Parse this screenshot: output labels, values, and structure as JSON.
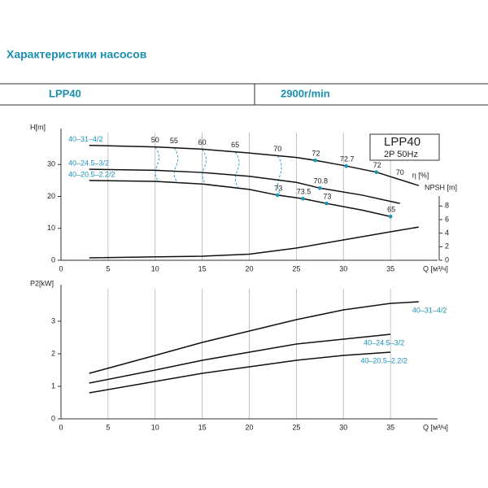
{
  "header": {
    "title": "Характеристики насосов"
  },
  "table": {
    "rows": [
      [
        "LPP40",
        "2900r/min"
      ]
    ]
  },
  "chart_data": [
    {
      "type": "line",
      "title": "LPP40",
      "subtitle": "2P 50Hz",
      "x_label": "Q [м³/ч]",
      "y_label": "H[m]",
      "y2_label": "NPSH [m]",
      "eta_label": "η [%]",
      "xlim": [
        0,
        40
      ],
      "xticks": [
        0,
        5,
        10,
        15,
        20,
        25,
        30,
        35
      ],
      "ylim": [
        0,
        40
      ],
      "yticks": [
        0,
        10,
        20,
        30
      ],
      "y2lim": [
        0,
        9
      ],
      "y2ticks": [
        0,
        2,
        4,
        6,
        8
      ],
      "grid": "x",
      "label_position": "start",
      "color": "#111",
      "series": [
        {
          "name": "40–31–4/2",
          "x": [
            3,
            10,
            15,
            20,
            25,
            27,
            30,
            33.5,
            38
          ],
          "values": [
            36,
            35.5,
            34.8,
            33.6,
            32.2,
            31.3,
            29.7,
            27.6,
            23.4
          ]
        },
        {
          "name": "40–24.5–3/2",
          "x": [
            3,
            10,
            15,
            20,
            25,
            27.5,
            32,
            36
          ],
          "values": [
            28.5,
            28.2,
            27.5,
            26.3,
            24.4,
            22.6,
            20.4,
            17.8
          ]
        },
        {
          "name": "40–20.5–2.2/2",
          "x": [
            3,
            10,
            15,
            20,
            23,
            25.7,
            28.2,
            32,
            35
          ],
          "values": [
            25,
            24.7,
            23.9,
            22.2,
            20.4,
            19.3,
            17.8,
            15.7,
            13.7
          ]
        },
        {
          "axis": "y2",
          "x": [
            3,
            15,
            20,
            25,
            30,
            35,
            38
          ],
          "values": [
            0.36,
            0.6,
            0.9,
            1.8,
            3.0,
            4.2,
            4.9
          ]
        }
      ],
      "efficiency_iso": [
        {
          "eta": 50,
          "x": 10
        },
        {
          "eta": 55,
          "x": 12
        },
        {
          "eta": 60,
          "x": 15
        },
        {
          "eta": 65,
          "x": 18.5
        },
        {
          "eta": 70,
          "x": 23
        },
        {
          "eta": 70,
          "x": 36
        }
      ],
      "efficiency_points": [
        {
          "eta": 72,
          "x": 27,
          "y": 31.3
        },
        {
          "eta": 72.7,
          "x": 30.3,
          "y": 29.5
        },
        {
          "eta": 72,
          "x": 33.5,
          "y": 27.6
        },
        {
          "eta": 70.8,
          "x": 27.5,
          "y": 22.6
        },
        {
          "eta": 73,
          "x": 23,
          "y": 20.4
        },
        {
          "eta": 73.5,
          "x": 25.7,
          "y": 19.3
        },
        {
          "eta": 73,
          "x": 28.2,
          "y": 17.8
        },
        {
          "eta": 65,
          "x": 35,
          "y": 13.7
        }
      ]
    },
    {
      "type": "line",
      "x_label": "Q [м³/ч]",
      "y_label": "P2[kW]",
      "xlim": [
        0,
        40
      ],
      "xticks": [
        0,
        5,
        10,
        15,
        20,
        25,
        30,
        35
      ],
      "ylim": [
        0,
        4
      ],
      "yticks": [
        0,
        1,
        2,
        3
      ],
      "grid": "x",
      "label_position": "end",
      "color": "#111",
      "series": [
        {
          "name": "40–31–4/2",
          "x": [
            3,
            10,
            15,
            20,
            25,
            30,
            35,
            38
          ],
          "values": [
            1.4,
            1.95,
            2.35,
            2.7,
            3.05,
            3.35,
            3.55,
            3.6
          ]
        },
        {
          "name": "40–24.5–3/2",
          "x": [
            3,
            10,
            15,
            20,
            25,
            30,
            35
          ],
          "values": [
            1.1,
            1.5,
            1.8,
            2.05,
            2.3,
            2.45,
            2.6
          ]
        },
        {
          "name": "40–20.5–2.2/2",
          "x": [
            3,
            10,
            15,
            20,
            25,
            30,
            35
          ],
          "values": [
            0.8,
            1.15,
            1.4,
            1.6,
            1.8,
            1.95,
            2.05
          ]
        }
      ]
    }
  ]
}
